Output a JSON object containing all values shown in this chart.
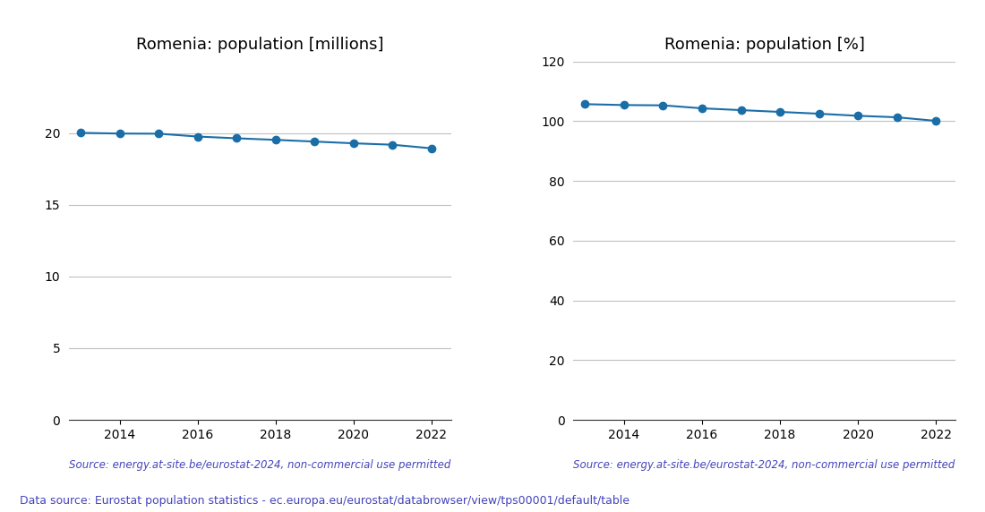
{
  "years": [
    2013,
    2014,
    2015,
    2016,
    2017,
    2018,
    2019,
    2020,
    2021,
    2022
  ],
  "population_millions": [
    20.02,
    19.97,
    19.96,
    19.76,
    19.64,
    19.53,
    19.41,
    19.29,
    19.19,
    18.94
  ],
  "population_pct": [
    105.7,
    105.4,
    105.3,
    104.3,
    103.7,
    103.1,
    102.5,
    101.8,
    101.3,
    100.1
  ],
  "title_left": "Romenia: population [millions]",
  "title_right": "Romenia: population [%]",
  "source_text": "Source: energy.at-site.be/eurostat-2024, non-commercial use permitted",
  "footer_text": "Data source: Eurostat population statistics - ec.europa.eu/eurostat/databrowser/view/tps00001/default/table",
  "line_color": "#1a6ea8",
  "source_color": "#4444bb",
  "footer_color": "#4444bb",
  "ylim_left": [
    0,
    25
  ],
  "ylim_right": [
    0,
    120
  ],
  "yticks_left": [
    0,
    5,
    10,
    15,
    20
  ],
  "yticks_right": [
    0,
    20,
    40,
    60,
    80,
    100,
    120
  ],
  "xticks": [
    2014,
    2016,
    2018,
    2020,
    2022
  ],
  "xlim": [
    2012.7,
    2022.5
  ],
  "background_color": "#ffffff",
  "axes_facecolor": "#ffffff",
  "grid_color": "#c0c0c0"
}
